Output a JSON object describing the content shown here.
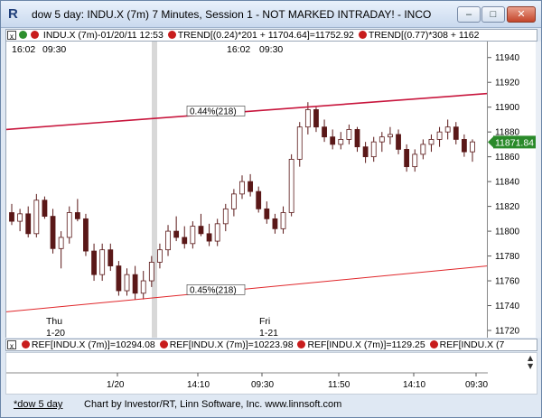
{
  "window": {
    "title": "dow 5 day: INDU.X (7m) 7 Minutes, Session 1 - NOT MARKED INTRADAY! - INCO",
    "app_icon_letter": "R",
    "min_label": "–",
    "max_label": "□",
    "close_label": "✕"
  },
  "legend": {
    "x_mark": "x",
    "symbol": "INDU.X (7m)-01/20/11 12:53",
    "trend1": "TREND[(0.24)*201 + 11704.64]=11752.92",
    "trend2": "TREND[(0.77)*308 + 1162"
  },
  "chart_data": {
    "type": "candlestick",
    "ylim": [
      11720,
      11950
    ],
    "y_ticks": [
      11720,
      11740,
      11760,
      11780,
      11800,
      11820,
      11840,
      11860,
      11880,
      11900,
      11920,
      11940
    ],
    "last_price": "11871.84",
    "top_time_labels": [
      {
        "label": "16:02",
        "slot": 0
      },
      {
        "label": "09:30",
        "slot": 1
      },
      {
        "label": "16:02",
        "slot": 2
      },
      {
        "label": "09:30",
        "slot": 3
      }
    ],
    "day_labels": [
      {
        "day": "Thu",
        "date": "1-20"
      },
      {
        "day": "Fri",
        "date": "1-21"
      }
    ],
    "trend_upper": {
      "label": "0.44%(218)",
      "start": 11882,
      "end": 11911,
      "color": "#c8163d"
    },
    "trend_lower": {
      "label": "0.45%(218)",
      "start": 11735,
      "end": 11772,
      "color": "#e0262a"
    },
    "bottom_time_labels": [
      "1/20",
      "14:10",
      "09:30",
      "11:50",
      "14:10",
      "09:30"
    ],
    "candles": [
      [
        11815,
        11822,
        11805,
        11808
      ],
      [
        11808,
        11818,
        11800,
        11814
      ],
      [
        11814,
        11820,
        11795,
        11798
      ],
      [
        11798,
        11830,
        11795,
        11825
      ],
      [
        11825,
        11828,
        11810,
        11812
      ],
      [
        11812,
        11818,
        11782,
        11786
      ],
      [
        11786,
        11800,
        11770,
        11795
      ],
      [
        11795,
        11820,
        11790,
        11815
      ],
      [
        11815,
        11826,
        11808,
        11810
      ],
      [
        11810,
        11814,
        11780,
        11784
      ],
      [
        11784,
        11790,
        11760,
        11765
      ],
      [
        11765,
        11790,
        11760,
        11785
      ],
      [
        11785,
        11790,
        11768,
        11772
      ],
      [
        11772,
        11776,
        11748,
        11752
      ],
      [
        11752,
        11770,
        11748,
        11765
      ],
      [
        11765,
        11772,
        11745,
        11750
      ],
      [
        11750,
        11768,
        11745,
        11760
      ],
      [
        11760,
        11780,
        11755,
        11775
      ],
      [
        11775,
        11790,
        11770,
        11785
      ],
      [
        11785,
        11805,
        11780,
        11800
      ],
      [
        11800,
        11812,
        11792,
        11795
      ],
      [
        11795,
        11804,
        11786,
        11790
      ],
      [
        11790,
        11808,
        11786,
        11804
      ],
      [
        11804,
        11814,
        11796,
        11798
      ],
      [
        11798,
        11806,
        11788,
        11792
      ],
      [
        11792,
        11810,
        11788,
        11806
      ],
      [
        11806,
        11822,
        11800,
        11818
      ],
      [
        11818,
        11834,
        11812,
        11830
      ],
      [
        11830,
        11845,
        11826,
        11840
      ],
      [
        11840,
        11846,
        11828,
        11832
      ],
      [
        11832,
        11836,
        11815,
        11818
      ],
      [
        11818,
        11824,
        11806,
        11810
      ],
      [
        11810,
        11814,
        11798,
        11802
      ],
      [
        11802,
        11820,
        11798,
        11815
      ],
      [
        11815,
        11862,
        11812,
        11858
      ],
      [
        11858,
        11888,
        11852,
        11884
      ],
      [
        11884,
        11904,
        11878,
        11898
      ],
      [
        11898,
        11900,
        11880,
        11884
      ],
      [
        11884,
        11890,
        11872,
        11876
      ],
      [
        11876,
        11882,
        11866,
        11870
      ],
      [
        11870,
        11880,
        11866,
        11874
      ],
      [
        11874,
        11886,
        11870,
        11882
      ],
      [
        11882,
        11884,
        11864,
        11868
      ],
      [
        11868,
        11872,
        11855,
        11860
      ],
      [
        11860,
        11876,
        11856,
        11872
      ],
      [
        11872,
        11880,
        11864,
        11876
      ],
      [
        11876,
        11884,
        11870,
        11878
      ],
      [
        11878,
        11882,
        11862,
        11866
      ],
      [
        11866,
        11870,
        11848,
        11852
      ],
      [
        11852,
        11866,
        11848,
        11862
      ],
      [
        11862,
        11874,
        11858,
        11870
      ],
      [
        11870,
        11878,
        11864,
        11874
      ],
      [
        11874,
        11884,
        11868,
        11880
      ],
      [
        11880,
        11890,
        11874,
        11884
      ],
      [
        11884,
        11888,
        11870,
        11874
      ],
      [
        11874,
        11878,
        11860,
        11864
      ],
      [
        11864,
        11874,
        11856,
        11872
      ]
    ]
  },
  "ref_bar": {
    "x_mark": "x",
    "items": [
      "REF[INDU.X (7m)]=10294.08",
      "REF[INDU.X (7m)]=10223.98",
      "REF[INDU.X (7m)]=1129.25",
      "REF[INDU.X (7"
    ]
  },
  "status": {
    "tab_label": "*dow 5 day",
    "credit": "Chart by Investor/RT, Linn Software, Inc. www.linnsoft.com"
  },
  "colors": {
    "candle": "#5a1818",
    "up_fill": "#ffffff",
    "down_fill": "#5a1818",
    "last_price_bg": "#2a8a2a"
  }
}
